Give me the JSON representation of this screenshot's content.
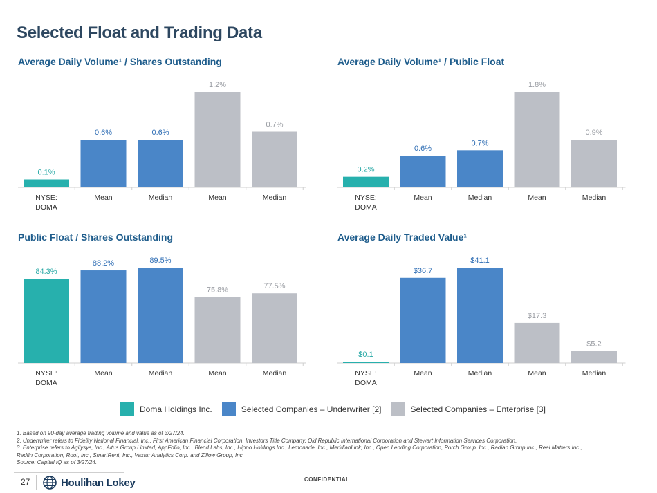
{
  "page": {
    "title": "Selected Float and Trading Data",
    "page_number": "27",
    "confidential": "CONFIDENTIAL",
    "logo_text": "Houlihan Lokey"
  },
  "colors": {
    "doma": "#27b0ad",
    "underwriter": "#4a86c8",
    "enterprise": "#bcbfc6",
    "title": "#2d4760",
    "panel_title": "#1f5d8c"
  },
  "legend": [
    {
      "label": "Doma Holdings Inc.",
      "color": "#27b0ad"
    },
    {
      "label": "Selected Companies – Underwriter [2]",
      "color": "#4a86c8"
    },
    {
      "label": "Selected Companies – Enterprise [3]",
      "color": "#bcbfc6"
    }
  ],
  "footnotes": [
    "1. Based on 90-day average trading volume and value as of 3/27/24.",
    "2. Underwriter  refers to Fidelity National Financial, Inc., First American Financial Corporation, Investors Title Company, Old Republic International Corporation and Stewart Information Services Corporation.",
    "3. Enterprise refers to Agilysys, Inc., Altus Group Limited, AppFolio, Inc., Blend Labs, Inc., Hippo Holdings Inc., Lemonade, Inc., MeridianLink, Inc., Open Lending Corporation, Porch Group, Inc., Radian Group Inc., Real Matters Inc.,",
    "Redfin Corporation, Root, Inc., SmartRent, Inc., Vaxtur Analytics Corp. and Zillow Group, Inc.",
    "Source: Capital IQ as of 3/27/24."
  ],
  "chart_data": [
    {
      "type": "bar",
      "title": "Average Daily Volume¹ / Shares Outstanding",
      "categories": [
        "NYSE:\nDOMA",
        "Mean",
        "Median",
        "Mean",
        "Median"
      ],
      "values": [
        0.1,
        0.6,
        0.6,
        1.2,
        0.7
      ],
      "labels": [
        "0.1%",
        "0.6%",
        "0.6%",
        "1.2%",
        "0.7%"
      ],
      "groups": [
        "doma",
        "underwriter",
        "underwriter",
        "enterprise",
        "enterprise"
      ],
      "ylim": [
        0,
        1.2
      ],
      "xlabel": "",
      "ylabel": ""
    },
    {
      "type": "bar",
      "title": "Average Daily Volume¹ / Public Float",
      "categories": [
        "NYSE:\nDOMA",
        "Mean",
        "Median",
        "Mean",
        "Median"
      ],
      "values": [
        0.2,
        0.6,
        0.7,
        1.8,
        0.9
      ],
      "labels": [
        "0.2%",
        "0.6%",
        "0.7%",
        "1.8%",
        "0.9%"
      ],
      "groups": [
        "doma",
        "underwriter",
        "underwriter",
        "enterprise",
        "enterprise"
      ],
      "ylim": [
        0,
        1.8
      ],
      "xlabel": "",
      "ylabel": ""
    },
    {
      "type": "bar",
      "title": "Public Float / Shares Outstanding",
      "categories": [
        "NYSE:\nDOMA",
        "Mean",
        "Median",
        "Mean",
        "Median"
      ],
      "values": [
        84.3,
        88.2,
        89.5,
        75.8,
        77.5
      ],
      "labels": [
        "84.3%",
        "88.2%",
        "89.5%",
        "75.8%",
        "77.5%"
      ],
      "groups": [
        "doma",
        "underwriter",
        "underwriter",
        "enterprise",
        "enterprise"
      ],
      "ylim": [
        45,
        89.5
      ],
      "xlabel": "",
      "ylabel": ""
    },
    {
      "type": "bar",
      "title": "Average Daily Traded Value¹",
      "categories": [
        "NYSE:\nDOMA",
        "Mean",
        "Median",
        "Mean",
        "Median"
      ],
      "values": [
        0.1,
        36.7,
        41.1,
        17.3,
        5.2
      ],
      "labels": [
        "$0.1",
        "$36.7",
        "$41.1",
        "$17.3",
        "$5.2"
      ],
      "groups": [
        "doma",
        "underwriter",
        "underwriter",
        "enterprise",
        "enterprise"
      ],
      "ylim": [
        0,
        41.1
      ],
      "xlabel": "",
      "ylabel": ""
    }
  ]
}
